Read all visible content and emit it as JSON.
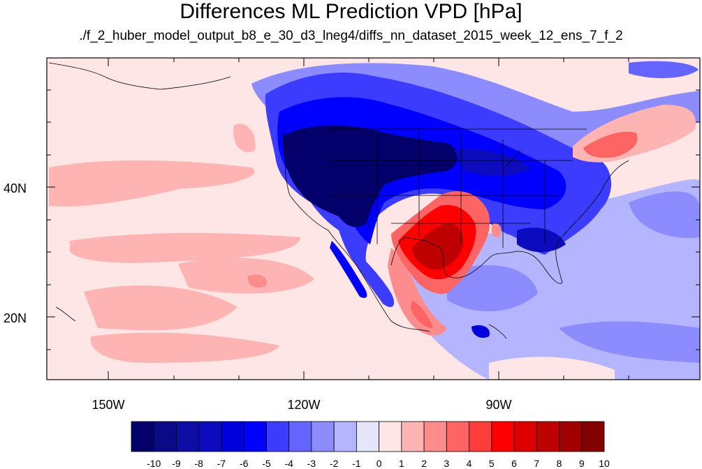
{
  "title": "Differences ML Prediction VPD [hPa]",
  "subtitle": "./f_2_huber_model_output_b8_e_30_d3_lneg4/diffs_nn_dataset_2015_week_12_ens_7_f_2",
  "map": {
    "lon_range": [
      -162,
      -61
    ],
    "lat_range": [
      11,
      60
    ],
    "lon_labels": [
      "150W",
      "120W",
      "90W"
    ],
    "lat_labels": [
      "40N",
      "20N"
    ],
    "regions": [
      {
        "name": "west-us-strong-negative",
        "value": -10
      },
      {
        "name": "northern-plains-negative",
        "value": -8
      },
      {
        "name": "great-lakes-negative",
        "value": -7
      },
      {
        "name": "texas-strong-positive",
        "value": 8
      },
      {
        "name": "mexico-positive",
        "value": 3
      },
      {
        "name": "maine-positive",
        "value": 4
      },
      {
        "name": "north-pacific-weak-positive",
        "value": 1
      },
      {
        "name": "gulf-negative",
        "value": -3
      },
      {
        "name": "atlantic-weak-negative",
        "value": -2
      }
    ]
  },
  "colorbar": {
    "labels": [
      "-10",
      "-9",
      "-8",
      "-7",
      "-6",
      "-5",
      "-4",
      "-3",
      "-2",
      "-1",
      "0",
      "1",
      "2",
      "3",
      "4",
      "5",
      "6",
      "7",
      "8",
      "9",
      "10"
    ],
    "colors": [
      "#03006b",
      "#0a0a86",
      "#0d0da3",
      "#0c0cbe",
      "#0000dc",
      "#0000ff",
      "#3c3cff",
      "#6464ff",
      "#8c8cff",
      "#b4b4ff",
      "#e6e6fa",
      "#ffe6e6",
      "#ffb4b4",
      "#ff8c8c",
      "#ff6464",
      "#ff3c3c",
      "#ff0000",
      "#dc0000",
      "#be0000",
      "#a00000",
      "#820000"
    ]
  }
}
